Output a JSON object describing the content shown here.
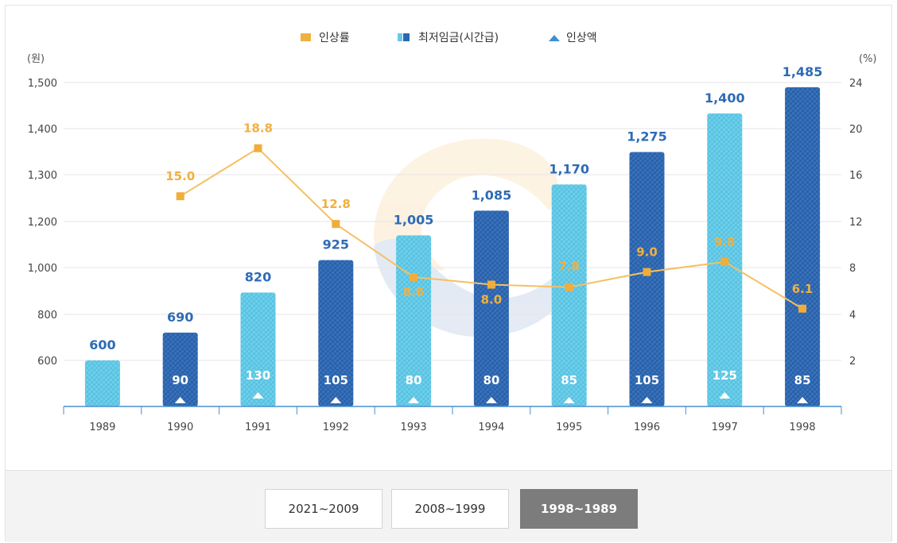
{
  "chart_data": {
    "type": "bar",
    "categories": [
      "1989",
      "1990",
      "1991",
      "1992",
      "1993",
      "1994",
      "1995",
      "1996",
      "1997",
      "1998"
    ],
    "series": [
      {
        "name": "최저임금(시간급)",
        "kind": "bar",
        "axis": "left",
        "values": [
          600,
          690,
          820,
          925,
          1005,
          1085,
          1170,
          1275,
          1400,
          1485
        ],
        "labels": [
          "600",
          "690",
          "820",
          "925",
          "1,005",
          "1,085",
          "1,170",
          "1,275",
          "1,400",
          "1,485"
        ]
      },
      {
        "name": "인상률",
        "kind": "line",
        "axis": "right",
        "values": [
          null,
          15.0,
          18.8,
          12.8,
          8.6,
          8.0,
          7.8,
          9.0,
          9.8,
          6.1
        ],
        "labels": [
          "",
          "15.0",
          "18.8",
          "12.8",
          "8.6",
          "8.0",
          "7.8",
          "9.0",
          "9.8",
          "6.1"
        ]
      },
      {
        "name": "인상액",
        "kind": "marker",
        "values": [
          null,
          90,
          130,
          105,
          80,
          80,
          85,
          105,
          125,
          85
        ],
        "labels": [
          "",
          "90",
          "130",
          "105",
          "80",
          "80",
          "85",
          "105",
          "125",
          "85"
        ]
      }
    ],
    "y_left": {
      "unit": "(원)",
      "ticks": [
        "1,500",
        "1,400",
        "1,300",
        "1,200",
        "1,000",
        "800",
        "600"
      ]
    },
    "y_right": {
      "unit": "(%)",
      "ticks": [
        "24",
        "20",
        "16",
        "12",
        "8",
        "4",
        "2"
      ]
    },
    "legend": [
      {
        "name": "인상률",
        "color": "#f0b040"
      },
      {
        "name": "최저임금(시간급)",
        "color": "#2e67b1"
      },
      {
        "name": "인상액",
        "color": "#3a8fd6"
      }
    ],
    "legend_position": "top-center",
    "colors": {
      "bar_dark": "#2e67b1",
      "bar_light": "#5ec8e6",
      "line": "#f5c062",
      "line_marker": "#f0ad3c",
      "line_label": "#f0b040",
      "bar_label": "#2e6bb5",
      "axis": "#4a8fcf",
      "grid": "#e6e6e6"
    }
  },
  "range_buttons": [
    {
      "label": "2021~2009",
      "active": false
    },
    {
      "label": "2008~1999",
      "active": false
    },
    {
      "label": "1998~1989",
      "active": true
    }
  ]
}
